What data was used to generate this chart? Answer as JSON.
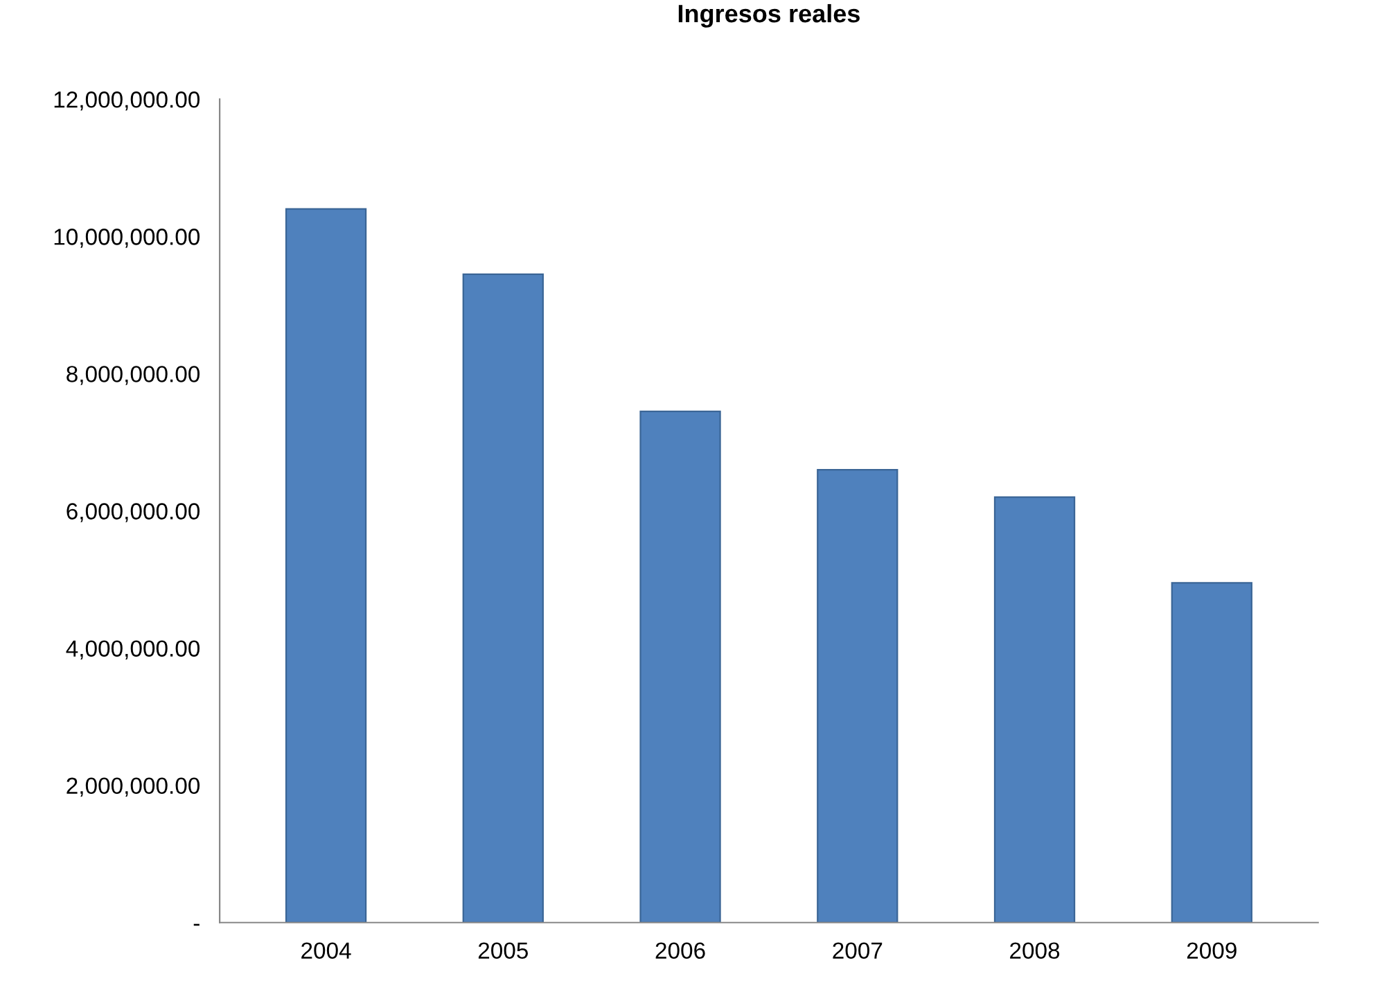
{
  "chart_data": {
    "type": "bar",
    "title": "Ingresos reales",
    "categories": [
      "2004",
      "2005",
      "2006",
      "2007",
      "2008",
      "2009"
    ],
    "values": [
      10400000,
      9450000,
      7450000,
      6600000,
      6200000,
      4950000
    ],
    "color": "#4f81bd",
    "ylim": [
      0,
      12000000
    ],
    "yticks": [
      {
        "value": 0,
        "label": "-"
      },
      {
        "value": 2000000,
        "label": "2,000,000.00"
      },
      {
        "value": 4000000,
        "label": "4,000,000.00"
      },
      {
        "value": 6000000,
        "label": "6,000,000.00"
      },
      {
        "value": 8000000,
        "label": "8,000,000.00"
      },
      {
        "value": 10000000,
        "label": "10,000,000.00"
      },
      {
        "value": 12000000,
        "label": "12,000,000.00"
      }
    ],
    "grid": false
  }
}
